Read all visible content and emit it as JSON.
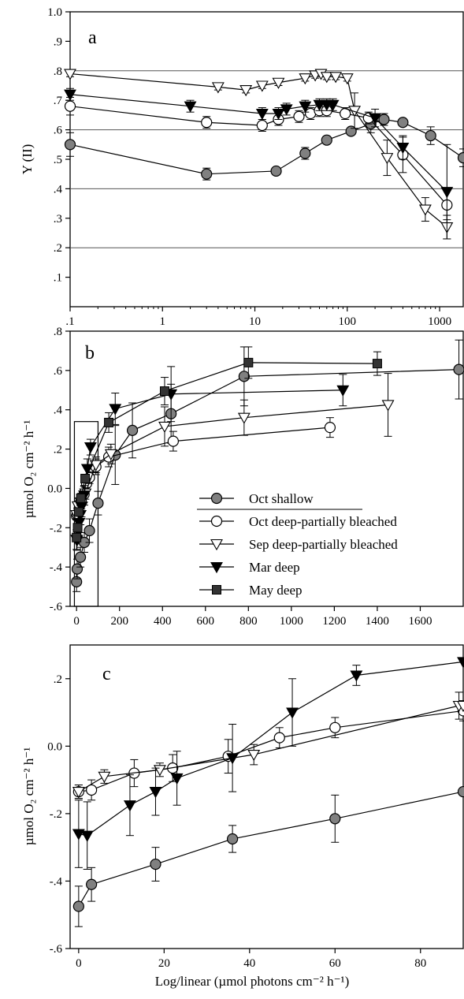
{
  "figure": {
    "x_axis_title": "Log/linear (µmol photons cm⁻² h⁻¹)"
  },
  "chart_data": [
    {
      "panel": "a",
      "type": "line",
      "x_scale": "log",
      "xlim": [
        0.1,
        1800
      ],
      "ylim": [
        0.0,
        1.0
      ],
      "ylabel": "Y (II)",
      "x_ticks": [
        0.1,
        1,
        10,
        100,
        1000
      ],
      "x_tick_labels": [
        ".1",
        "1",
        "10",
        "100",
        "1000"
      ],
      "y_ticks": [
        0.1,
        0.2,
        0.3,
        0.4,
        0.5,
        0.6,
        0.7,
        0.8,
        0.9,
        1.0
      ],
      "y_tick_labels": [
        ".1",
        ".2",
        ".3",
        ".4",
        ".5",
        ".6",
        ".7",
        ".8",
        ".9",
        "1.0"
      ],
      "gridlines_y": [
        0.2,
        0.4,
        0.6,
        0.8
      ],
      "grid": "horizontal at .2 .4 .6 .8",
      "series": [
        {
          "marker": "filled-circle",
          "x": [
            0.1,
            3,
            17,
            35,
            60,
            110,
            180,
            250,
            400,
            800,
            1800
          ],
          "y": [
            0.55,
            0.45,
            0.46,
            0.52,
            0.565,
            0.595,
            0.62,
            0.635,
            0.625,
            0.58,
            0.505
          ],
          "err": [
            0.04,
            0.02,
            0.01,
            0.02,
            0.01,
            0.01,
            0.03,
            0.02,
            0.01,
            0.03,
            0.03
          ]
        },
        {
          "marker": "open-circle",
          "x": [
            0.1,
            3,
            12,
            18,
            30,
            40,
            50,
            60,
            95,
            170,
            400,
            1200
          ],
          "y": [
            0.68,
            0.625,
            0.615,
            0.635,
            0.645,
            0.655,
            0.665,
            0.665,
            0.655,
            0.64,
            0.515,
            0.345
          ],
          "err": [
            0.03,
            0.02,
            0.02,
            0.02,
            0.02,
            0.02,
            0.02,
            0.02,
            0.02,
            0.02,
            0.06,
            0.05
          ]
        },
        {
          "marker": "open-triangle-down",
          "x": [
            0.1,
            4,
            8,
            12,
            18,
            35,
            45,
            52,
            60,
            75,
            100,
            120,
            270,
            700,
            1200
          ],
          "y": [
            0.79,
            0.745,
            0.735,
            0.75,
            0.76,
            0.775,
            0.785,
            0.79,
            0.78,
            0.78,
            0.775,
            0.665,
            0.505,
            0.33,
            0.27
          ],
          "err": [
            0.01,
            0.01,
            0.01,
            0.01,
            0.01,
            0.01,
            0.01,
            0.01,
            0.01,
            0.01,
            0.01,
            0.06,
            0.06,
            0.04,
            0.04
          ]
        },
        {
          "marker": "filled-triangle-down",
          "x": [
            0.1,
            2,
            12,
            18,
            22,
            35,
            50,
            60,
            70,
            200,
            400,
            1200
          ],
          "y": [
            0.72,
            0.68,
            0.655,
            0.655,
            0.67,
            0.68,
            0.685,
            0.685,
            0.685,
            0.64,
            0.54,
            0.39
          ],
          "err": [
            0.02,
            0.02,
            0.02,
            0.02,
            0.02,
            0.02,
            0.02,
            0.02,
            0.02,
            0.03,
            0.04,
            0.16
          ]
        }
      ]
    },
    {
      "panel": "b",
      "type": "line",
      "xlim": [
        -30,
        1800
      ],
      "ylim": [
        -0.6,
        0.8
      ],
      "ylabel": "µmol O₂ cm⁻² h⁻¹",
      "x_ticks": [
        0,
        200,
        400,
        600,
        800,
        1000,
        1200,
        1400,
        1600
      ],
      "x_tick_labels": [
        "0",
        "200",
        "400",
        "600",
        "800",
        "1000",
        "1200",
        "1400",
        "1600"
      ],
      "y_ticks": [
        -0.6,
        -0.4,
        -0.2,
        0.0,
        0.2,
        0.4,
        0.6,
        0.8
      ],
      "y_tick_labels": [
        "-.6",
        "-.4",
        "-.2",
        "0.0",
        ".2",
        ".4",
        ".6",
        ".8"
      ],
      "inset_box": {
        "x": [
          -10,
          100
        ],
        "y": [
          -0.6,
          0.34
        ]
      },
      "legend_placement": "lower-right",
      "series": [
        {
          "name": "Oct shallow",
          "marker": "filled-circle",
          "x": [
            0,
            3,
            18,
            36,
            60,
            100,
            180,
            260,
            440,
            780,
            1780
          ],
          "y": [
            -0.475,
            -0.41,
            -0.35,
            -0.275,
            -0.215,
            -0.075,
            0.17,
            0.295,
            0.38,
            0.57,
            0.605
          ],
          "err": [
            0.05,
            0.05,
            0.05,
            0.05,
            0.06,
            0.06,
            0.15,
            0.14,
            0.15,
            0.15,
            0.15
          ]
        },
        {
          "name": "Oct deep-partially bleached",
          "marker": "open-circle",
          "x": [
            0,
            3,
            13,
            22,
            35,
            47,
            60,
            90,
            150,
            450,
            1180
          ],
          "y": [
            -0.14,
            -0.13,
            -0.08,
            -0.065,
            -0.03,
            0.025,
            0.055,
            0.11,
            0.16,
            0.24,
            0.31
          ],
          "err": [
            0.02,
            0.03,
            0.03,
            0.04,
            0.04,
            0.03,
            0.03,
            0.04,
            0.05,
            0.05,
            0.05
          ]
        },
        {
          "name": "Sep deep-partially bleached",
          "marker": "open-triangle-down",
          "x": [
            0,
            6,
            19,
            41,
            90,
            160,
            410,
            780,
            1450
          ],
          "y": [
            -0.135,
            -0.09,
            -0.07,
            -0.025,
            0.12,
            0.175,
            0.315,
            0.36,
            0.425
          ],
          "err": [
            0.02,
            0.02,
            0.02,
            0.03,
            0.04,
            0.05,
            0.1,
            0.09,
            0.16
          ]
        },
        {
          "name": "Mar deep",
          "marker": "filled-triangle-down",
          "x": [
            0,
            2,
            12,
            18,
            23,
            36,
            50,
            65,
            180,
            440,
            1240
          ],
          "y": [
            -0.26,
            -0.265,
            -0.175,
            -0.135,
            -0.095,
            -0.035,
            0.1,
            0.21,
            0.405,
            0.48,
            0.5
          ],
          "err": [
            0.05,
            0.05,
            0.05,
            0.05,
            0.05,
            0.05,
            0.05,
            0.04,
            0.08,
            0.14,
            0.08
          ]
        },
        {
          "name": "May deep",
          "marker": "filled-square",
          "x": [
            0,
            5,
            10,
            20,
            40,
            150,
            410,
            800,
            1400
          ],
          "y": [
            -0.25,
            -0.2,
            -0.12,
            -0.05,
            0.05,
            0.335,
            0.495,
            0.64,
            0.635
          ],
          "err": [
            0.02,
            0.02,
            0.02,
            0.02,
            0.02,
            0.05,
            0.07,
            0.08,
            0.06
          ]
        }
      ]
    },
    {
      "panel": "c",
      "type": "line",
      "xlim": [
        -2,
        90
      ],
      "ylim": [
        -0.6,
        0.3
      ],
      "ylabel": "µmol O₂ cm⁻² h⁻¹",
      "x_ticks": [
        0,
        20,
        40,
        60,
        80
      ],
      "x_tick_labels": [
        "0",
        "20",
        "40",
        "60",
        "80"
      ],
      "y_ticks": [
        -0.6,
        -0.4,
        -0.2,
        0.0,
        0.2
      ],
      "y_tick_labels": [
        "-.6",
        "-.4",
        "-.2",
        "0.0",
        ".2"
      ],
      "series": [
        {
          "marker": "filled-circle",
          "x": [
            0,
            3,
            18,
            36,
            60,
            90
          ],
          "y": [
            -0.475,
            -0.41,
            -0.35,
            -0.275,
            -0.215,
            -0.135
          ],
          "err": [
            0.06,
            0.05,
            0.05,
            0.04,
            0.07,
            0
          ]
        },
        {
          "marker": "open-circle",
          "x": [
            0,
            3,
            13,
            22,
            35,
            47,
            60,
            90
          ],
          "y": [
            -0.135,
            -0.13,
            -0.08,
            -0.065,
            -0.03,
            0.025,
            0.055,
            0.105
          ],
          "err": [
            0.02,
            0.03,
            0.04,
            0.04,
            0.05,
            0.03,
            0.03,
            0.03
          ]
        },
        {
          "marker": "open-triangle-down",
          "x": [
            0,
            6,
            19,
            41,
            89,
            90
          ],
          "y": [
            -0.135,
            -0.09,
            -0.07,
            -0.025,
            0.12,
            0.12
          ],
          "err": [
            0.02,
            0.02,
            0.02,
            0.03,
            0.04,
            0
          ]
        },
        {
          "marker": "filled-triangle-down",
          "x": [
            0,
            2,
            12,
            18,
            23,
            36,
            50,
            65,
            90
          ],
          "y": [
            -0.26,
            -0.265,
            -0.175,
            -0.135,
            -0.095,
            -0.035,
            0.1,
            0.21,
            0.25
          ],
          "err": [
            0.1,
            0.1,
            0.09,
            0.07,
            0.08,
            0.1,
            0.1,
            0.03,
            0
          ]
        }
      ]
    }
  ],
  "panels": {
    "a": {
      "letter": "a"
    },
    "b": {
      "letter": "b"
    },
    "c": {
      "letter": "c"
    }
  },
  "colors": {
    "filled_circle": "#808080",
    "filled_square": "#333333",
    "line": "#000000",
    "grid": "#555555"
  }
}
